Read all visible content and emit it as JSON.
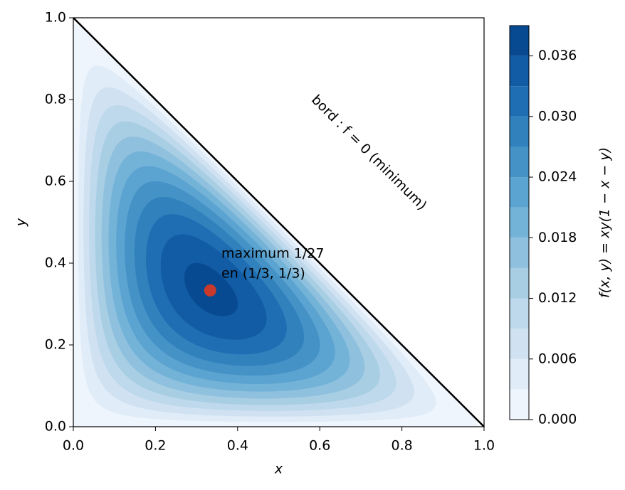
{
  "chart_data": {
    "type": "contour",
    "xlabel": "x",
    "ylabel": "y",
    "xlim": [
      0,
      1
    ],
    "ylim": [
      0,
      1
    ],
    "xticks": [
      {
        "value": 0,
        "label": "0.0"
      },
      0.2,
      0.4,
      0.6,
      0.8,
      {
        "value": 1,
        "label": "1.0"
      }
    ],
    "yticks": [
      {
        "value": 0,
        "label": "0.0"
      },
      0.2,
      0.4,
      0.6,
      0.8,
      {
        "value": 1,
        "label": "1.0"
      }
    ],
    "levels": [
      0,
      0.003,
      0.006,
      0.009,
      0.012,
      0.015,
      0.018,
      0.021,
      0.024,
      0.027,
      0.03,
      0.033,
      0.036,
      0.039
    ],
    "colors": [
      "#eef5fc",
      "#e0ecf8",
      "#d0e2f2",
      "#bed8ec",
      "#a8cee4",
      "#8fc1de",
      "#74b3d8",
      "#5ba3d0",
      "#4592c6",
      "#3181bd",
      "#1f6eb3",
      "#115ca5",
      "#084a92"
    ],
    "colorbar_label": "f(x, y) = xy(1 − x − y)",
    "colorbar_ticks": [
      {
        "value": 0,
        "label": "0.000"
      },
      {
        "value": 0.006,
        "label": "0.006"
      },
      {
        "value": 0.012,
        "label": "0.012"
      },
      {
        "value": 0.018,
        "label": "0.018"
      },
      {
        "value": 0.024,
        "label": "0.024"
      },
      {
        "value": 0.03,
        "label": "0.030"
      },
      {
        "value": 0.036,
        "label": "0.036"
      }
    ],
    "boundary_label": "bord : f = 0 (minimum)",
    "maximum": {
      "x": 0.3333,
      "y": 0.3333,
      "color": "#c9392c",
      "label": [
        "maximum 1/27",
        "en (1/3, 1/3)"
      ]
    }
  }
}
